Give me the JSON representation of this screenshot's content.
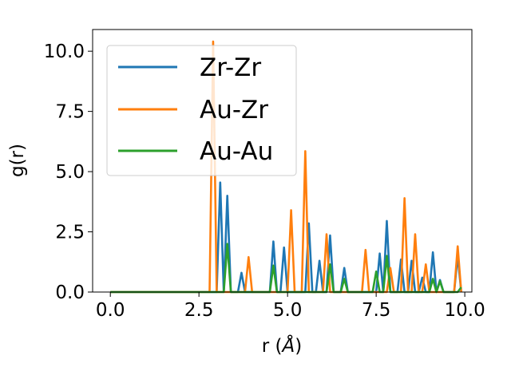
{
  "chart_data": {
    "type": "line",
    "xlabel": "r (",
    "xlabel_unit": "Å",
    "xlabel_close": ")",
    "ylabel": "g(r)",
    "xlim": [
      -0.5,
      10.2
    ],
    "ylim": [
      0.0,
      10.9
    ],
    "xticks": [
      0.0,
      2.5,
      5.0,
      7.5,
      10.0
    ],
    "xtick_labels": [
      "0.0",
      "2.5",
      "5.0",
      "7.5",
      "10.0"
    ],
    "yticks": [
      0.0,
      2.5,
      5.0,
      7.5,
      10.0
    ],
    "ytick_labels": [
      "0.0",
      "2.5",
      "5.0",
      "7.5",
      "10.0"
    ],
    "grid": false,
    "legend_position": "upper-left",
    "series": [
      {
        "name": "Zr-Zr",
        "color": "#1f77b4",
        "peaks": [
          [
            3.1,
            4.55
          ],
          [
            3.3,
            4.0
          ],
          [
            3.7,
            0.8
          ],
          [
            4.6,
            2.1
          ],
          [
            4.9,
            1.85
          ],
          [
            5.6,
            2.85
          ],
          [
            5.9,
            1.3
          ],
          [
            6.2,
            2.35
          ],
          [
            6.6,
            1.0
          ],
          [
            7.6,
            1.6
          ],
          [
            7.8,
            2.95
          ],
          [
            8.2,
            1.35
          ],
          [
            8.5,
            1.3
          ],
          [
            8.8,
            0.6
          ],
          [
            9.1,
            1.65
          ],
          [
            9.3,
            0.5
          ],
          [
            9.8,
            1.5
          ]
        ]
      },
      {
        "name": "Au-Zr",
        "color": "#ff7f0e",
        "peaks": [
          [
            2.9,
            10.4
          ],
          [
            3.9,
            1.45
          ],
          [
            5.1,
            3.4
          ],
          [
            5.5,
            5.85
          ],
          [
            6.1,
            2.4
          ],
          [
            7.2,
            1.75
          ],
          [
            7.9,
            1.0
          ],
          [
            8.3,
            3.9
          ],
          [
            8.6,
            2.4
          ],
          [
            8.9,
            1.15
          ],
          [
            9.8,
            1.9
          ]
        ]
      },
      {
        "name": "Au-Au",
        "color": "#2ca02c",
        "peaks": [
          [
            3.3,
            2.0
          ],
          [
            4.6,
            1.1
          ],
          [
            6.2,
            1.15
          ],
          [
            6.6,
            0.55
          ],
          [
            7.5,
            0.85
          ],
          [
            7.8,
            1.5
          ],
          [
            9.1,
            0.55
          ],
          [
            9.3,
            0.45
          ],
          [
            9.9,
            0.2
          ]
        ]
      }
    ]
  }
}
